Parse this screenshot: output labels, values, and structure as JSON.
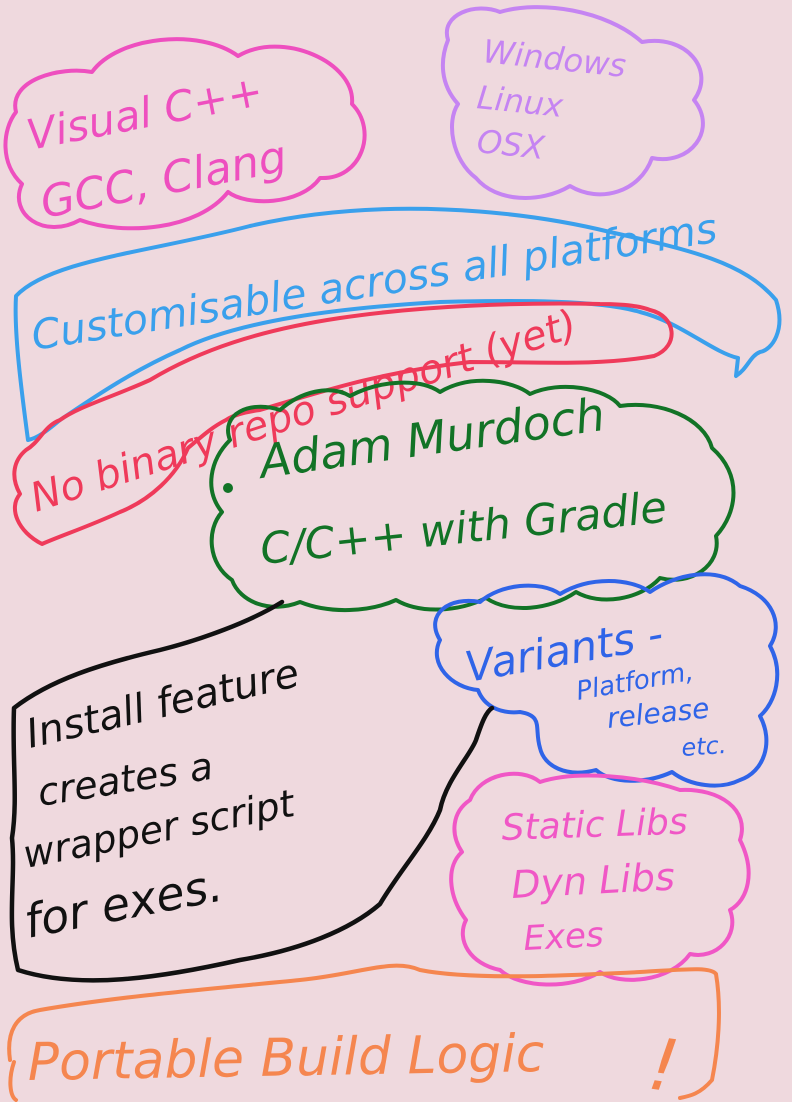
{
  "notes": {
    "compilers": {
      "line1": "Visual C++",
      "line2": "GCC, Clang"
    },
    "platforms": {
      "line1": "Windows",
      "line2": "Linux",
      "line3": "OSX"
    },
    "customisable": {
      "text": "Customisable across all platforms"
    },
    "binary_repo": {
      "text": "No binary repo support (yet)"
    },
    "adam_murdoch": {
      "line1": "Adam Murdoch",
      "line2": "C/C++ with Gradle"
    },
    "variants": {
      "line1": "Variants -",
      "line2": "Platform,",
      "line3": "release",
      "line4": "etc."
    },
    "install_feature": {
      "line1": "Install feature",
      "line2": "creates a",
      "line3": "wrapper script",
      "line4": "for exes."
    },
    "libs": {
      "line1": "Static Libs",
      "line2": "Dyn Libs",
      "line3": "Exes"
    },
    "portable": {
      "text": "Portable Build Logic"
    },
    "exclamation": "!"
  },
  "colors": {
    "background": "#efd9de",
    "pink": "#ee4fbf",
    "purple": "#c584f2",
    "blue": "#3aa0ec",
    "red": "#ef3a5a",
    "green": "#127326",
    "royal_blue": "#2f64e8",
    "black": "#111111",
    "magenta": "#f057c6",
    "orange": "#f5864f"
  }
}
